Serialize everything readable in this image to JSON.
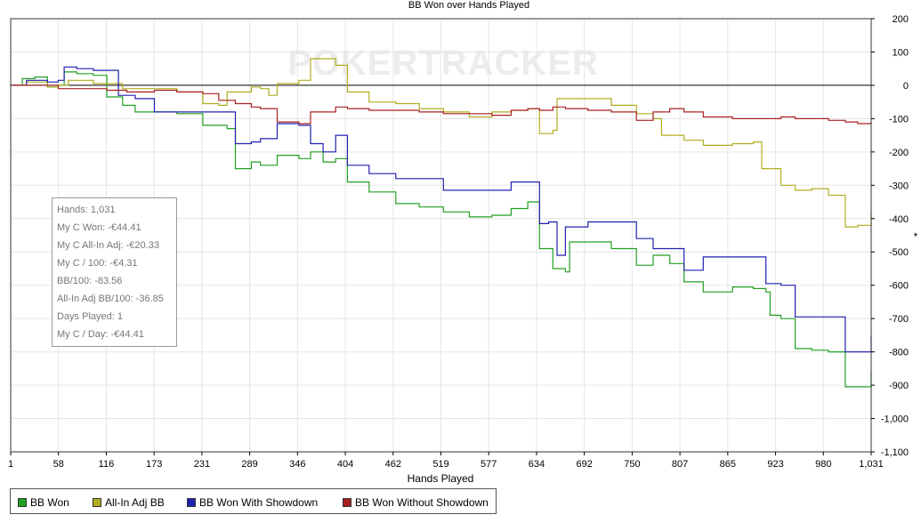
{
  "chart_data": {
    "type": "line",
    "title": "BB Won over Hands Played",
    "xlabel": "Hands Played",
    "ylabel": "*",
    "watermark": "POKERTRACKER",
    "xlim": [
      1,
      1031
    ],
    "ylim": [
      -1100,
      200
    ],
    "x_ticks": [
      "1",
      "58",
      "116",
      "173",
      "231",
      "289",
      "346",
      "404",
      "462",
      "519",
      "577",
      "634",
      "692",
      "750",
      "807",
      "865",
      "923",
      "980",
      "1,031"
    ],
    "y_ticks": [
      {
        "v": 200,
        "label": "200"
      },
      {
        "v": 100,
        "label": "100"
      },
      {
        "v": 0,
        "label": "0"
      },
      {
        "v": -100,
        "label": "-100"
      },
      {
        "v": -200,
        "label": "-200"
      },
      {
        "v": -300,
        "label": "-300"
      },
      {
        "v": -400,
        "label": "-400"
      },
      {
        "v": -500,
        "label": "-500"
      },
      {
        "v": -600,
        "label": "-600"
      },
      {
        "v": -700,
        "label": "-700"
      },
      {
        "v": -800,
        "label": "-800"
      },
      {
        "v": -900,
        "label": "-900"
      },
      {
        "v": -1000,
        "label": "-1,000"
      },
      {
        "v": -1100,
        "label": "-1,100"
      }
    ],
    "grid": true,
    "legend_position": "bottom-left",
    "series": [
      {
        "name": "BB Won",
        "color": "#22a022",
        "points": [
          [
            1,
            0
          ],
          [
            15,
            20
          ],
          [
            30,
            25
          ],
          [
            45,
            -5
          ],
          [
            58,
            0
          ],
          [
            65,
            40
          ],
          [
            80,
            35
          ],
          [
            100,
            30
          ],
          [
            116,
            -35
          ],
          [
            135,
            -60
          ],
          [
            150,
            -80
          ],
          [
            173,
            -80
          ],
          [
            200,
            -85
          ],
          [
            231,
            -120
          ],
          [
            260,
            -130
          ],
          [
            270,
            -250
          ],
          [
            289,
            -230
          ],
          [
            300,
            -240
          ],
          [
            320,
            -210
          ],
          [
            346,
            -220
          ],
          [
            360,
            -200
          ],
          [
            375,
            -230
          ],
          [
            390,
            -220
          ],
          [
            404,
            -290
          ],
          [
            430,
            -320
          ],
          [
            462,
            -355
          ],
          [
            490,
            -365
          ],
          [
            519,
            -380
          ],
          [
            550,
            -395
          ],
          [
            577,
            -390
          ],
          [
            600,
            -370
          ],
          [
            620,
            -350
          ],
          [
            634,
            -490
          ],
          [
            650,
            -550
          ],
          [
            665,
            -560
          ],
          [
            670,
            -470
          ],
          [
            692,
            -470
          ],
          [
            720,
            -490
          ],
          [
            750,
            -540
          ],
          [
            770,
            -510
          ],
          [
            790,
            -535
          ],
          [
            807,
            -590
          ],
          [
            830,
            -620
          ],
          [
            865,
            -605
          ],
          [
            890,
            -610
          ],
          [
            905,
            -620
          ],
          [
            910,
            -690
          ],
          [
            923,
            -700
          ],
          [
            940,
            -790
          ],
          [
            960,
            -795
          ],
          [
            980,
            -800
          ],
          [
            1000,
            -905
          ],
          [
            1015,
            -905
          ],
          [
            1031,
            -860
          ]
        ]
      },
      {
        "name": "All-In Adj BB",
        "color": "#b0ad20",
        "points": [
          [
            1,
            0
          ],
          [
            20,
            10
          ],
          [
            45,
            -5
          ],
          [
            58,
            0
          ],
          [
            70,
            15
          ],
          [
            100,
            5
          ],
          [
            116,
            5
          ],
          [
            135,
            -10
          ],
          [
            160,
            -10
          ],
          [
            173,
            -10
          ],
          [
            200,
            -20
          ],
          [
            231,
            -55
          ],
          [
            250,
            -60
          ],
          [
            260,
            -20
          ],
          [
            289,
            -5
          ],
          [
            300,
            -10
          ],
          [
            310,
            -30
          ],
          [
            320,
            5
          ],
          [
            346,
            15
          ],
          [
            360,
            80
          ],
          [
            375,
            80
          ],
          [
            390,
            60
          ],
          [
            404,
            -20
          ],
          [
            430,
            -50
          ],
          [
            462,
            -55
          ],
          [
            490,
            -70
          ],
          [
            519,
            -80
          ],
          [
            550,
            -95
          ],
          [
            577,
            -80
          ],
          [
            600,
            -75
          ],
          [
            620,
            -70
          ],
          [
            634,
            -145
          ],
          [
            650,
            -135
          ],
          [
            655,
            -40
          ],
          [
            692,
            -40
          ],
          [
            720,
            -60
          ],
          [
            750,
            -85
          ],
          [
            770,
            -100
          ],
          [
            780,
            -150
          ],
          [
            807,
            -165
          ],
          [
            830,
            -180
          ],
          [
            865,
            -175
          ],
          [
            890,
            -170
          ],
          [
            900,
            -250
          ],
          [
            923,
            -300
          ],
          [
            940,
            -315
          ],
          [
            960,
            -310
          ],
          [
            980,
            -330
          ],
          [
            1000,
            -425
          ],
          [
            1015,
            -420
          ],
          [
            1031,
            -380
          ]
        ]
      },
      {
        "name": "BB Won With Showdown",
        "color": "#2020b0",
        "points": [
          [
            1,
            0
          ],
          [
            20,
            15
          ],
          [
            45,
            10
          ],
          [
            58,
            15
          ],
          [
            65,
            55
          ],
          [
            80,
            50
          ],
          [
            100,
            45
          ],
          [
            116,
            45
          ],
          [
            130,
            -30
          ],
          [
            150,
            -40
          ],
          [
            173,
            -80
          ],
          [
            200,
            -80
          ],
          [
            231,
            -80
          ],
          [
            260,
            -80
          ],
          [
            270,
            -175
          ],
          [
            289,
            -170
          ],
          [
            300,
            -160
          ],
          [
            320,
            -115
          ],
          [
            346,
            -120
          ],
          [
            360,
            -175
          ],
          [
            375,
            -200
          ],
          [
            390,
            -150
          ],
          [
            404,
            -240
          ],
          [
            430,
            -265
          ],
          [
            462,
            -280
          ],
          [
            490,
            -280
          ],
          [
            519,
            -315
          ],
          [
            550,
            -315
          ],
          [
            577,
            -315
          ],
          [
            600,
            -290
          ],
          [
            620,
            -290
          ],
          [
            634,
            -415
          ],
          [
            645,
            -410
          ],
          [
            655,
            -510
          ],
          [
            665,
            -425
          ],
          [
            692,
            -410
          ],
          [
            720,
            -410
          ],
          [
            750,
            -460
          ],
          [
            770,
            -490
          ],
          [
            790,
            -490
          ],
          [
            807,
            -555
          ],
          [
            830,
            -515
          ],
          [
            865,
            -515
          ],
          [
            890,
            -515
          ],
          [
            905,
            -595
          ],
          [
            923,
            -600
          ],
          [
            940,
            -695
          ],
          [
            960,
            -695
          ],
          [
            980,
            -695
          ],
          [
            1000,
            -800
          ],
          [
            1015,
            -800
          ],
          [
            1031,
            -750
          ]
        ]
      },
      {
        "name": "BB Won Without Showdown",
        "color": "#a82020",
        "points": [
          [
            1,
            0
          ],
          [
            30,
            0
          ],
          [
            58,
            -10
          ],
          [
            80,
            -10
          ],
          [
            116,
            -15
          ],
          [
            140,
            -20
          ],
          [
            173,
            -15
          ],
          [
            200,
            -20
          ],
          [
            231,
            -25
          ],
          [
            250,
            -45
          ],
          [
            270,
            -55
          ],
          [
            289,
            -65
          ],
          [
            300,
            -70
          ],
          [
            320,
            -110
          ],
          [
            346,
            -115
          ],
          [
            360,
            -80
          ],
          [
            390,
            -65
          ],
          [
            404,
            -70
          ],
          [
            430,
            -75
          ],
          [
            462,
            -75
          ],
          [
            490,
            -80
          ],
          [
            519,
            -85
          ],
          [
            550,
            -85
          ],
          [
            577,
            -90
          ],
          [
            600,
            -75
          ],
          [
            620,
            -70
          ],
          [
            634,
            -75
          ],
          [
            650,
            -65
          ],
          [
            665,
            -70
          ],
          [
            692,
            -75
          ],
          [
            720,
            -80
          ],
          [
            750,
            -105
          ],
          [
            770,
            -80
          ],
          [
            790,
            -70
          ],
          [
            807,
            -80
          ],
          [
            830,
            -95
          ],
          [
            865,
            -100
          ],
          [
            890,
            -100
          ],
          [
            923,
            -95
          ],
          [
            940,
            -100
          ],
          [
            960,
            -100
          ],
          [
            980,
            -105
          ],
          [
            1000,
            -110
          ],
          [
            1015,
            -115
          ],
          [
            1031,
            -110
          ]
        ]
      }
    ]
  },
  "stats": [
    "Hands: 1,031",
    "My C Won: -€44.41",
    "My C All-In Adj: -€20.33",
    "My C / 100: -€4.31",
    "BB/100: -83.56",
    "All-In Adj BB/100: -36.85",
    "Days Played: 1",
    "My C / Day: -€44.41"
  ]
}
